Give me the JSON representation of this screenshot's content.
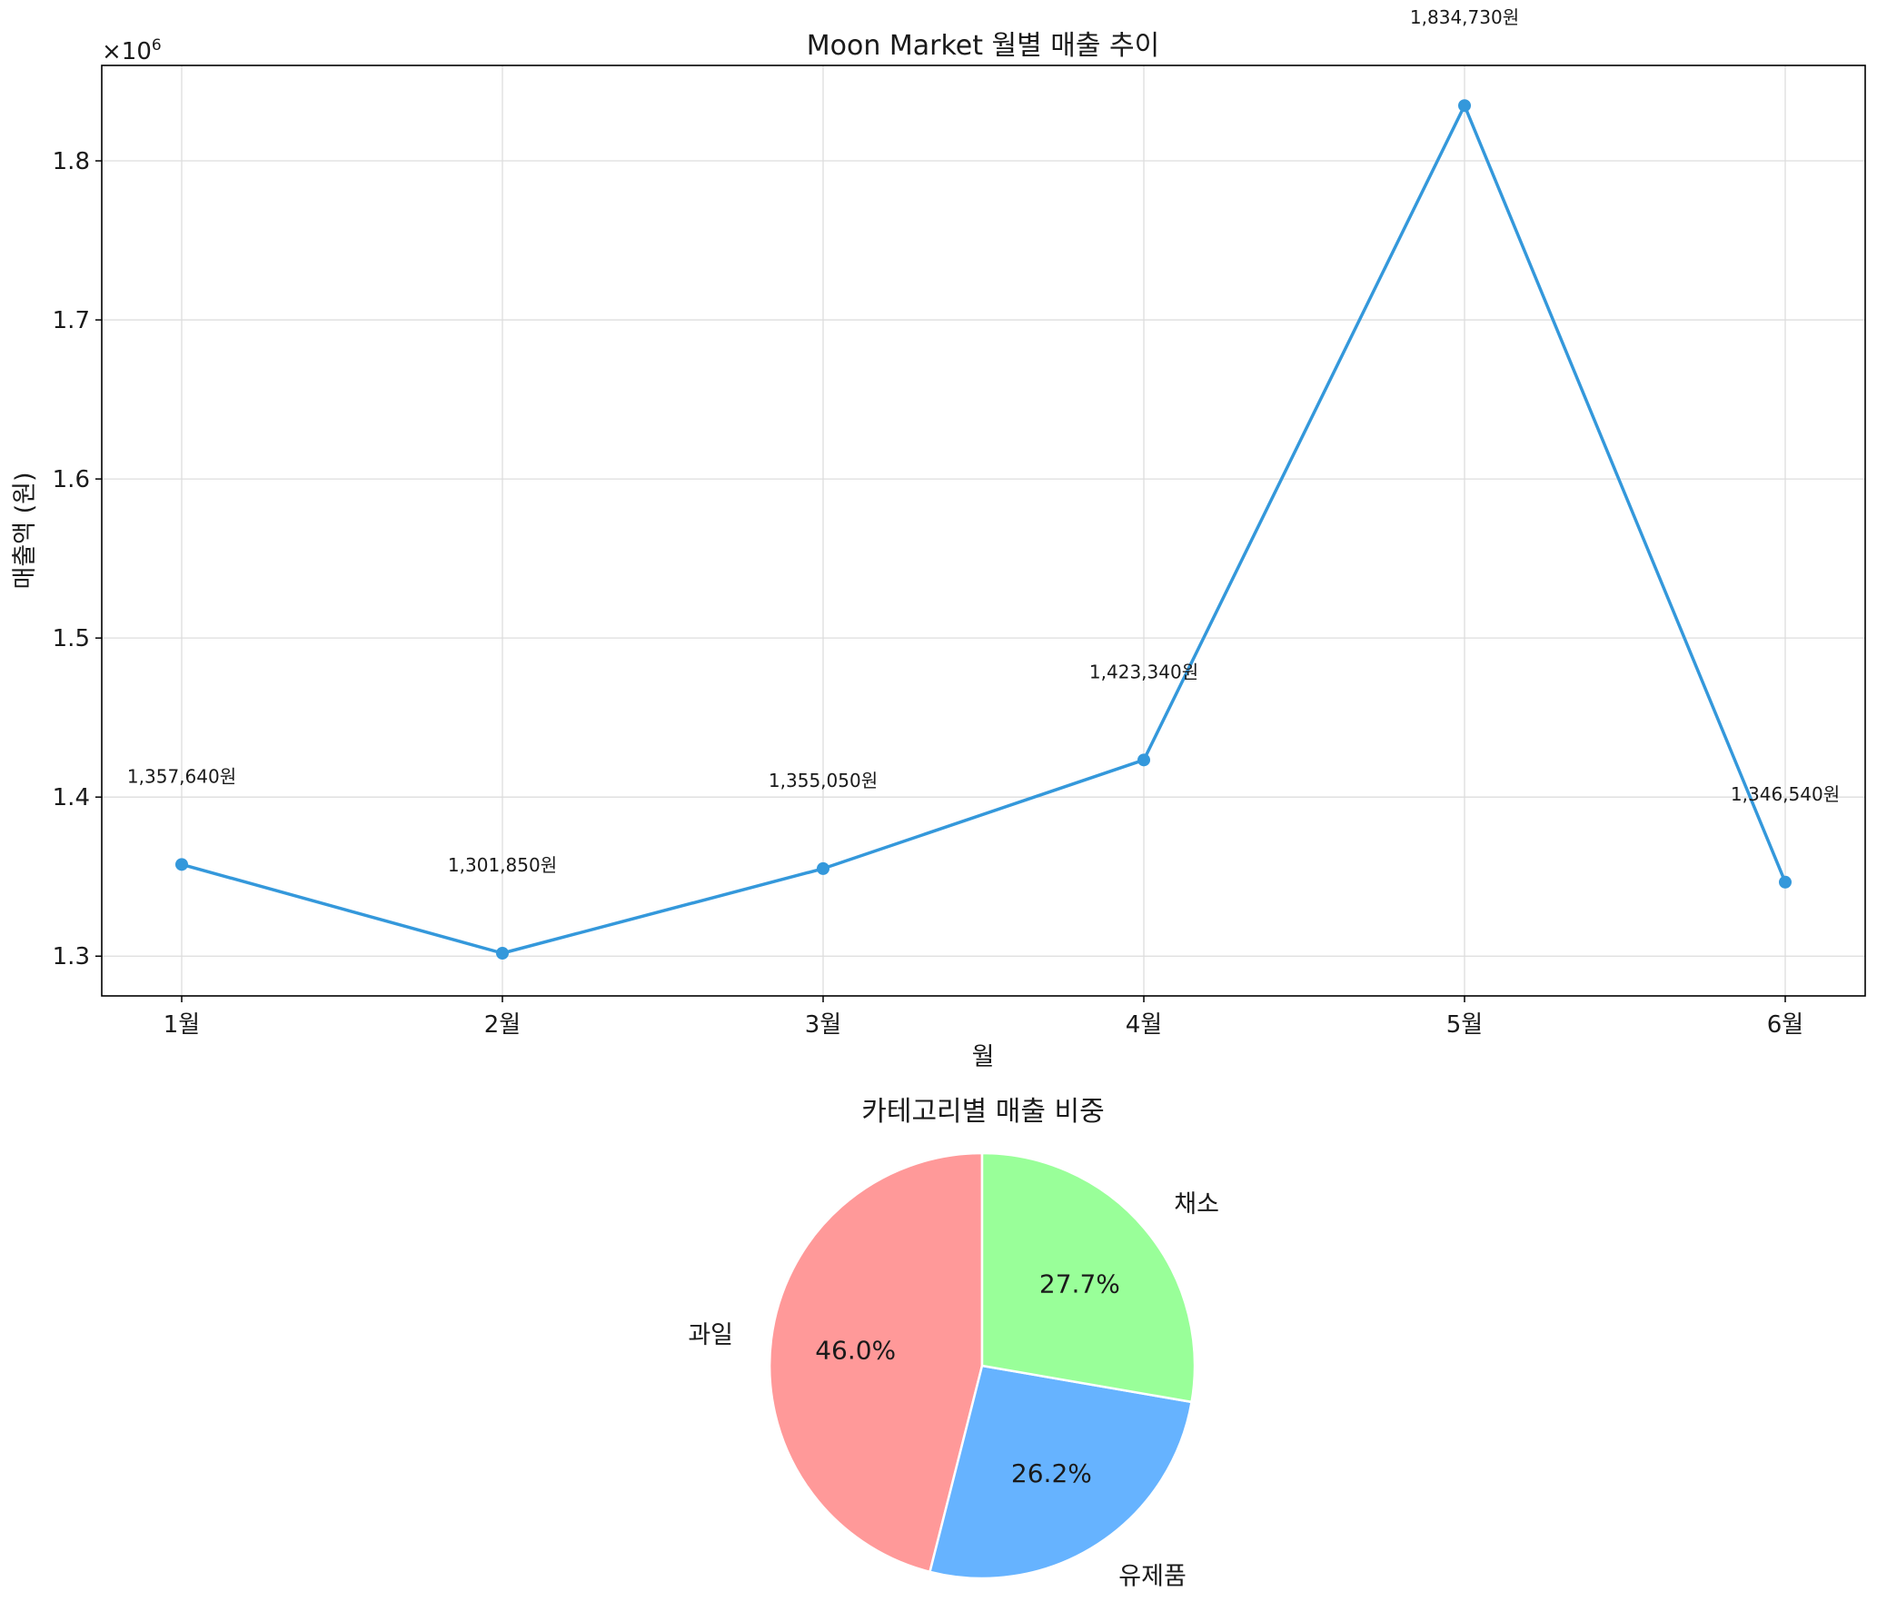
{
  "chart_data": [
    {
      "type": "line",
      "title": "Moon Market 월별 매출 추이",
      "xlabel": "월",
      "ylabel": "매출액 (원)",
      "y_offset_label": "×10",
      "y_offset_exp": "6",
      "categories": [
        "1월",
        "2월",
        "3월",
        "4월",
        "5월",
        "6월"
      ],
      "series": [
        {
          "values": [
            1357640,
            1301850,
            1355050,
            1423340,
            1834730,
            1346540
          ],
          "color": "#3498db"
        }
      ],
      "data_labels": [
        "1,357,640원",
        "1,301,850원",
        "1,355,050원",
        "1,423,340원",
        "1,834,730원",
        "1,346,540원"
      ],
      "yticks": [
        1.3,
        1.4,
        1.5,
        1.6,
        1.7,
        1.8
      ],
      "ytick_labels": [
        "1.3",
        "1.4",
        "1.5",
        "1.6",
        "1.7",
        "1.8"
      ],
      "ylim": [
        1275000,
        1860000
      ],
      "grid": true
    },
    {
      "type": "pie",
      "title": "카테고리별 매출 비중",
      "labels": [
        "과일",
        "유제품",
        "채소"
      ],
      "values": [
        46.0,
        26.2,
        27.7
      ],
      "pct_labels": [
        "46.0%",
        "26.2%",
        "27.7%"
      ],
      "colors": [
        "#ff9999",
        "#66b3ff",
        "#99ff99"
      ],
      "start_angle": "top, counter-clockwise"
    }
  ]
}
